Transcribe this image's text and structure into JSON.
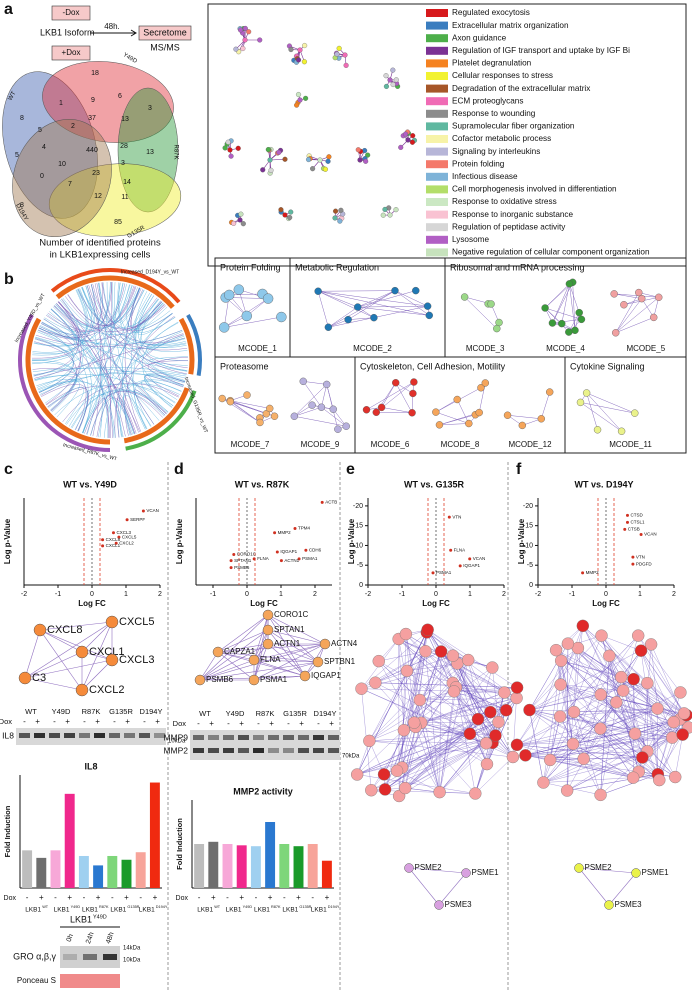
{
  "panels": [
    "a",
    "b",
    "c",
    "d",
    "e",
    "f"
  ],
  "a": {
    "isoform": "LKB1 Isoform",
    "minus_dox": "-Dox",
    "plus_dox": "+Dox",
    "time": "48h.",
    "secretome": "Secretome",
    "msms": "MS/MS",
    "venn_sets": [
      "WT",
      "Y49D",
      "R87K",
      "G135R",
      "D194Y"
    ],
    "venn_counts": [
      "18",
      "8",
      "1",
      "9",
      "6",
      "3",
      "37",
      "13",
      "5",
      "4",
      "2",
      "5",
      "440",
      "28",
      "13",
      "3",
      "10",
      "23",
      "14",
      "0",
      "7",
      "12",
      "11",
      "8",
      "85"
    ],
    "caption": [
      "Number of identified proteins",
      "in LKB1expressing cells"
    ],
    "legend": [
      {
        "name": "Regulated exocytosis",
        "color": "#d7191c"
      },
      {
        "name": "Extracellular matrix organization",
        "color": "#3a7dbf"
      },
      {
        "name": "Axon guidance",
        "color": "#4daf4a"
      },
      {
        "name": "Regulation of IGF transport and uptake by IGF Bi",
        "color": "#7b3294"
      },
      {
        "name": "Platelet degranulation",
        "color": "#f58220"
      },
      {
        "name": "Cellular responses to stress",
        "color": "#f2f230"
      },
      {
        "name": "Degradation of the extracellular matrix",
        "color": "#a65628"
      },
      {
        "name": "ECM proteoglycans",
        "color": "#f06bb5"
      },
      {
        "name": "Response to wounding",
        "color": "#8c8c8c"
      },
      {
        "name": "Supramolecular fiber organization",
        "color": "#5fb8a0"
      },
      {
        "name": "Cofactor metabolic process",
        "color": "#f7f3a8"
      },
      {
        "name": "Signaling by interleukins",
        "color": "#b7b6d8"
      },
      {
        "name": "Protein folding",
        "color": "#f4796b"
      },
      {
        "name": "Infectious disease",
        "color": "#7eb3d8"
      },
      {
        "name": "Cell morphogenesis involved in differentiation",
        "color": "#b3de69"
      },
      {
        "name": "Response to oxidative stress",
        "color": "#cbe8c3"
      },
      {
        "name": "Response to inorganic substance",
        "color": "#f9c2d2"
      },
      {
        "name": "Regulation of peptidase activity",
        "color": "#d6d6d6"
      },
      {
        "name": "Lysosome",
        "color": "#b15fc4"
      },
      {
        "name": "Negative regulation of cellular component organization",
        "color": "#c7e3bd"
      }
    ]
  },
  "b": {
    "circos": [
      "Increased_D194Y_vs_WT",
      "Increased_Y49D_vs_WT",
      "Increased_G135R_vs_WT",
      "Increased_R87K_vs_WT"
    ],
    "modules": [
      {
        "title": "Protein Folding",
        "codes": [
          "MCODE_1"
        ]
      },
      {
        "title": "Metabolic Regulation",
        "codes": [
          "MCODE_2"
        ]
      },
      {
        "title": "Ribosomal and mRNA processing",
        "codes": [
          "MCODE_3",
          "MCODE_4",
          "MCODE_5"
        ]
      },
      {
        "title": "Proteasome",
        "codes": [
          "MCODE_7",
          "MCODE_9"
        ]
      },
      {
        "title": "Cytoskeleton, Cell Adhesion, Motility",
        "codes": [
          "MCODE_6",
          "MCODE_8",
          "MCODE_12"
        ]
      },
      {
        "title": "Cytokine Signaling",
        "codes": [
          "MCODE_11"
        ]
      }
    ]
  },
  "c": {
    "volcano": {
      "title": "WT vs. Y49D",
      "ylabel": "Log p-Value",
      "xlabel": "Log FC",
      "xlim": [
        -2,
        2
      ],
      "xticks": [
        -2,
        -1,
        0,
        1,
        2
      ],
      "genes": [
        "VCAN",
        "SERPF",
        "CXCL5",
        "CXCL2",
        "CXCL3",
        "CXCL1",
        "CXCL8"
      ]
    },
    "network": [
      "CXCL8",
      "CXCL5",
      "CXCL1",
      "CXCL3",
      "C3",
      "CXCL2"
    ],
    "blot": {
      "lanes": [
        "WT",
        "Y49D",
        "R87K",
        "G135R",
        "D194Y"
      ],
      "dox_label": "Dox",
      "dox_signs": [
        "-",
        "+"
      ],
      "bands": [
        "IL8"
      ],
      "marker": "10kDa"
    },
    "chart": {
      "type": "bar",
      "title": "IL8",
      "ylabel": "Fold Induction",
      "ylim": [
        0,
        3
      ],
      "values": [
        1.0,
        0.8,
        1.0,
        2.5,
        0.85,
        0.6,
        0.85,
        0.75,
        0.95,
        2.8
      ],
      "colors": [
        "#bdbdbd",
        "#6e6e6e",
        "#f7a8d8",
        "#f0288c",
        "#9fd0f0",
        "#2a78d0",
        "#7ed67a",
        "#1a9a2a",
        "#f7a49a",
        "#f02a10"
      ],
      "gene": "LKB1",
      "groups": [
        "WT",
        "Y49D",
        "R87K",
        "G135R",
        "D194Y"
      ],
      "dox_label": "Dox",
      "dox_signs": [
        "-",
        "+"
      ]
    },
    "time_blot": {
      "gene": "LKB1",
      "variant": "Y49D",
      "times": [
        "0h",
        "24h",
        "48h"
      ],
      "band": "GRO α,β,γ",
      "markers": [
        "14kDa",
        "10kDa"
      ],
      "loading": "Ponceau S"
    }
  },
  "d": {
    "volcano": {
      "title": "WT vs. R87K",
      "ylabel": "Log p-Value",
      "xlabel": "Log FC",
      "xlim": [
        -1.5,
        2.5
      ],
      "xticks": [
        -1,
        0,
        1,
        2
      ],
      "genes": [
        "ACTB",
        "MMP2",
        "TPM4",
        "CDH6",
        "PSMA1",
        "ACTN1",
        "IQGAP1",
        "CORO1C",
        "SPTAN1",
        "PSMB6",
        "FLNA"
      ]
    },
    "network": [
      "CORO1C",
      "SPTAN1",
      "CAPZA1",
      "ACTN1",
      "ACTN4",
      "FLNA",
      "SPTBN1",
      "PSMB6",
      "PSMA1",
      "IQGAP1"
    ],
    "blot": {
      "lanes": [
        "WT",
        "Y49D",
        "R87K",
        "G135R",
        "D194Y"
      ],
      "dox_label": "Dox",
      "dox_signs": [
        "-",
        "+"
      ],
      "bands": [
        "MMP9",
        "MMP2"
      ],
      "marker": "70kDa"
    },
    "chart": {
      "type": "bar",
      "title": "MMP2 activity",
      "ylabel": "Fold Induction",
      "ylim": [
        0,
        2
      ],
      "values": [
        1.0,
        1.05,
        1.0,
        0.97,
        0.95,
        1.5,
        1.0,
        0.95,
        1.0,
        0.62
      ],
      "colors": [
        "#bdbdbd",
        "#6e6e6e",
        "#f7a8d8",
        "#f0288c",
        "#9fd0f0",
        "#2a78d0",
        "#7ed67a",
        "#1a9a2a",
        "#f7a49a",
        "#f02a10"
      ],
      "gene": "LKB1",
      "groups": [
        "WT",
        "Y49D",
        "R87K",
        "G135R",
        "D194Y"
      ],
      "dox_label": "Dox",
      "dox_signs": [
        "-",
        "+"
      ]
    }
  },
  "e": {
    "volcano": {
      "title": "WT vs. G135R",
      "ylabel": "Log p-Value",
      "xlabel": "Log FC",
      "xlim": [
        -2,
        2
      ],
      "xticks": [
        -2,
        -1,
        0,
        1,
        2
      ],
      "ylim": [
        0,
        -22
      ],
      "yticks": [
        -20,
        -15,
        -10,
        -5,
        0
      ],
      "genes": [
        "VTN",
        "FLNA",
        "VCAN",
        "IQGAP1",
        "PSMA1"
      ]
    },
    "network": [
      "PSME2",
      "PSME1",
      "PSME3"
    ]
  },
  "f": {
    "volcano": {
      "title": "WT vs. D194Y",
      "ylabel": "Log p-Value",
      "xlabel": "Log FC",
      "xlim": [
        -2,
        2
      ],
      "xticks": [
        -2,
        -1,
        0,
        1,
        2
      ],
      "ylim": [
        0,
        -22
      ],
      "yticks": [
        -20,
        -15,
        -10,
        -5,
        0
      ],
      "genes": [
        "CTSD",
        "CTSL1",
        "CTSB",
        "VCAN",
        "VTN",
        "PDGFD",
        "MMP2"
      ]
    },
    "network": [
      "PSME2",
      "PSME1",
      "PSME3"
    ]
  }
}
